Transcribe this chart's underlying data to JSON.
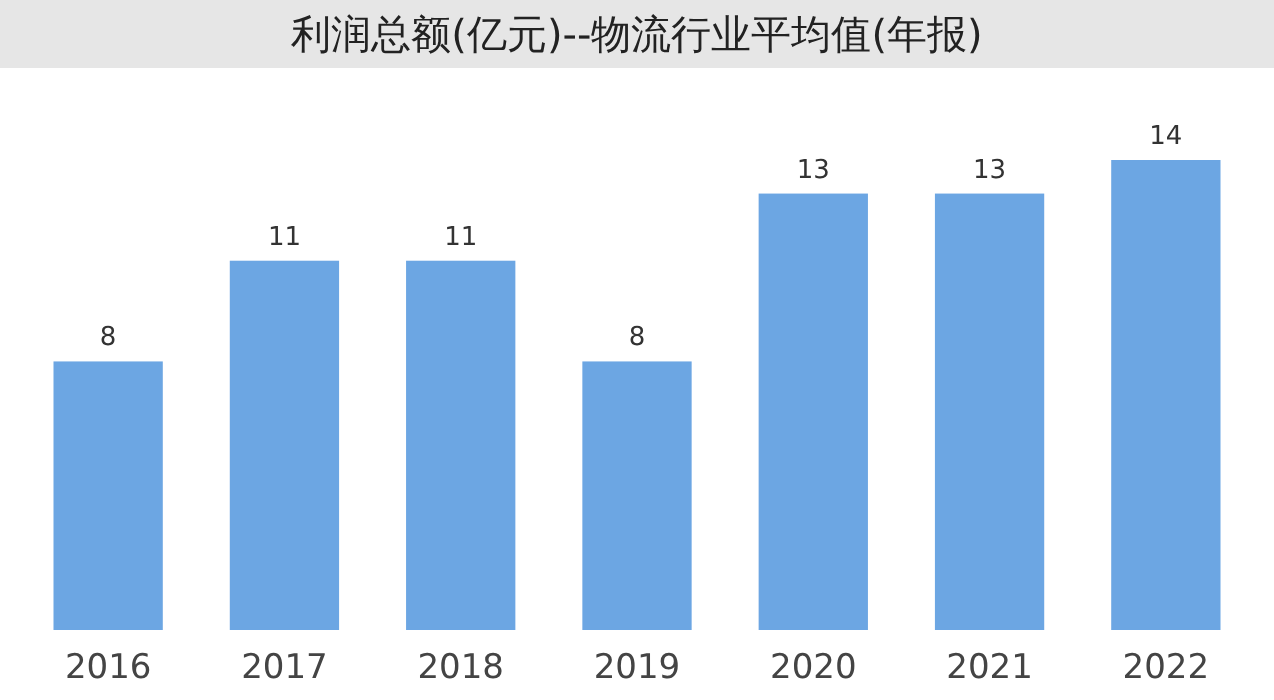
{
  "chart_data": {
    "type": "bar",
    "title": "利润总额(亿元)--物流行业平均值(年报)",
    "categories": [
      "2016",
      "2017",
      "2018",
      "2019",
      "2020",
      "2021",
      "2022"
    ],
    "values": [
      8,
      11,
      11,
      8,
      13,
      13,
      14
    ],
    "color": "#6ca6e3",
    "data_labels": true
  }
}
